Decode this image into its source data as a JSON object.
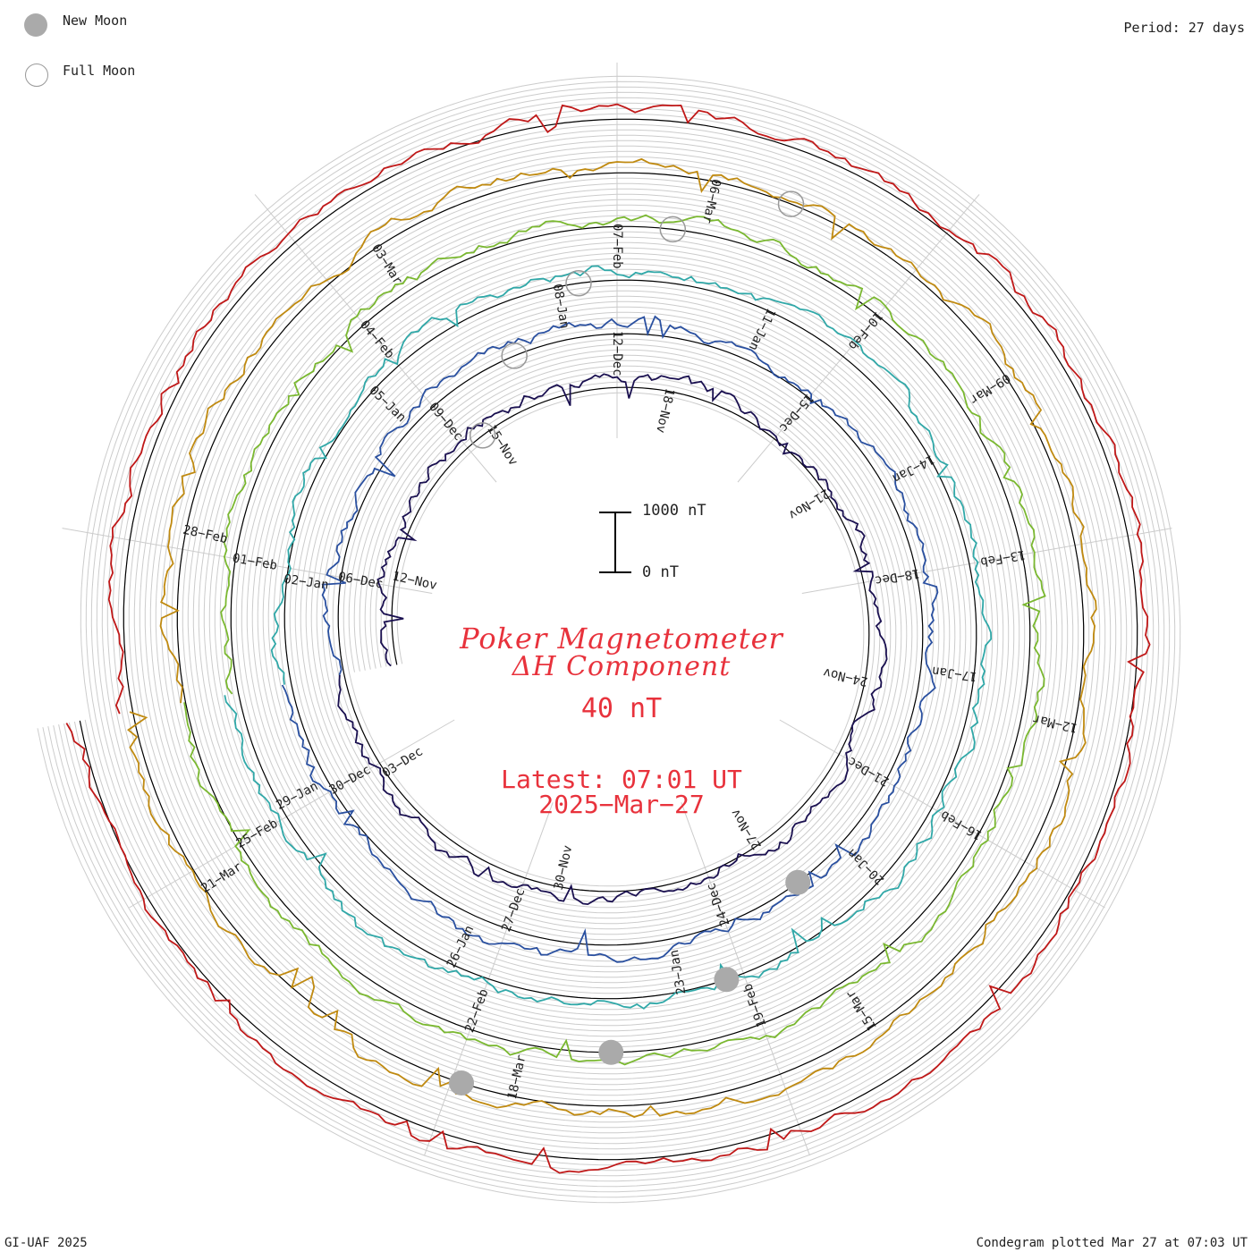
{
  "legend": {
    "new_moon": {
      "label": "New Moon",
      "color": "#aaaaaa"
    },
    "full_moon": {
      "label": "Full Moon",
      "color": "#aaaaaa"
    }
  },
  "period_label": "Period: 27 days",
  "footer": {
    "left": "GI-UAF 2025",
    "right": "Condegram plotted Mar 27 at 07:03 UT"
  },
  "title": {
    "line1": "Poker Magnetometer",
    "line2": "ΔH Component",
    "line3": "40 nT",
    "line4": "Latest: 07:01 UT",
    "line5": "2025−Mar−27"
  },
  "scale_bar": {
    "top_label": "1000 nT",
    "bottom_label": "0 nT"
  },
  "chart_data": {
    "type": "line",
    "subtype": "condegram-spiral",
    "title": "Poker Magnetometer ΔH Component",
    "baseline_label": "40 nT",
    "period_days": 27,
    "grid": true,
    "series": [
      {
        "ring": 1,
        "color": "#1a1050",
        "date_labels": [
          "12−Nov",
          "15−Nov",
          "18−Nov",
          "21−Nov",
          "24−Nov",
          "27−Nov",
          "30−Nov",
          "03−Dec"
        ]
      },
      {
        "ring": 2,
        "color": "#2a50a0",
        "date_labels": [
          "06−Dec",
          "09−Dec",
          "12−Dec",
          "15−Dec",
          "18−Dec",
          "21−Dec",
          "24−Dec",
          "27−Dec",
          "30−Dec"
        ]
      },
      {
        "ring": 3,
        "color": "#30a8a8",
        "date_labels": [
          "02−Jan",
          "05−Jan",
          "08−Jan",
          "11−Jan",
          "14−Jan",
          "17−Jan",
          "20−Jan",
          "23−Jan",
          "26−Jan",
          "29−Jan"
        ]
      },
      {
        "ring": 4,
        "color": "#7ab830",
        "date_labels": [
          "01−Feb",
          "04−Feb",
          "07−Feb",
          "10−Feb",
          "13−Feb",
          "16−Feb",
          "19−Feb",
          "22−Feb",
          "25−Feb"
        ]
      },
      {
        "ring": 5,
        "color": "#c08a10",
        "date_labels": [
          "28−Feb",
          "03−Mar",
          "06−Mar",
          "09−Mar",
          "12−Mar",
          "15−Mar",
          "18−Mar",
          "21−Mar"
        ]
      },
      {
        "ring": 6,
        "color": "#c01818",
        "date_labels": []
      }
    ],
    "new_moon_dates": [
      "01−Dec",
      "30−Dec",
      "29−Jan",
      "28−Feb"
    ],
    "full_moon_dates": [
      "15−Nov",
      "15−Dec",
      "13−Jan",
      "12−Feb",
      "14−Mar"
    ]
  }
}
